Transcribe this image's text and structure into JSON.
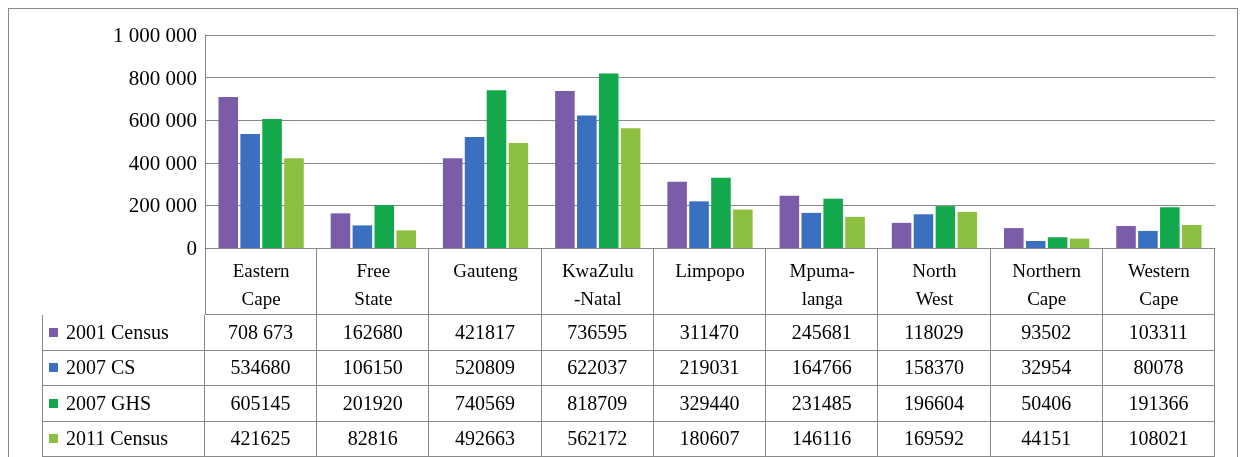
{
  "chart_data": {
    "type": "bar",
    "categories": [
      "Eastern Cape",
      "Free State",
      "Gauteng",
      "KwaZulu-Natal",
      "Limpopo",
      "Mpuma-langa",
      "North West",
      "Northern Cape",
      "Western Cape"
    ],
    "series": [
      {
        "name": "2001 Census",
        "color": "#7b5ca8",
        "values": [
          708673,
          162680,
          421817,
          736595,
          311470,
          245681,
          118029,
          93502,
          103311
        ],
        "value_labels": [
          "708 673",
          "162680",
          "421817",
          "736595",
          "311470",
          "245681",
          "118029",
          "93502",
          "103311"
        ]
      },
      {
        "name": "2007 CS",
        "color": "#3b6fc0",
        "values": [
          534680,
          106150,
          520809,
          622037,
          219031,
          164766,
          158370,
          32954,
          80078
        ],
        "value_labels": [
          "534680",
          "106150",
          "520809",
          "622037",
          "219031",
          "164766",
          "158370",
          "32954",
          "80078"
        ]
      },
      {
        "name": "2007 GHS",
        "color": "#13a84c",
        "values": [
          605145,
          201920,
          740569,
          818709,
          329440,
          231485,
          196604,
          50406,
          191366
        ],
        "value_labels": [
          "605145",
          "201920",
          "740569",
          "818709",
          "329440",
          "231485",
          "196604",
          "50406",
          "191366"
        ]
      },
      {
        "name": "2011 Census",
        "color": "#8dbf41",
        "values": [
          421625,
          82816,
          492663,
          562172,
          180607,
          146116,
          169592,
          44151,
          108021
        ],
        "value_labels": [
          "421625",
          "82816",
          "492663",
          "562172",
          "180607",
          "146116",
          "169592",
          "44151",
          "108021"
        ]
      }
    ],
    "ylim": [
      0,
      1000000
    ],
    "yticks": [
      {
        "value": 0,
        "label": "0"
      },
      {
        "value": 200000,
        "label": "200 000"
      },
      {
        "value": 400000,
        "label": "400 000"
      },
      {
        "value": 600000,
        "label": "600 000"
      },
      {
        "value": 800000,
        "label": "800 000"
      },
      {
        "value": 1000000,
        "label": "1 000 000"
      }
    ],
    "grid": "y",
    "legend": "bottom left"
  }
}
